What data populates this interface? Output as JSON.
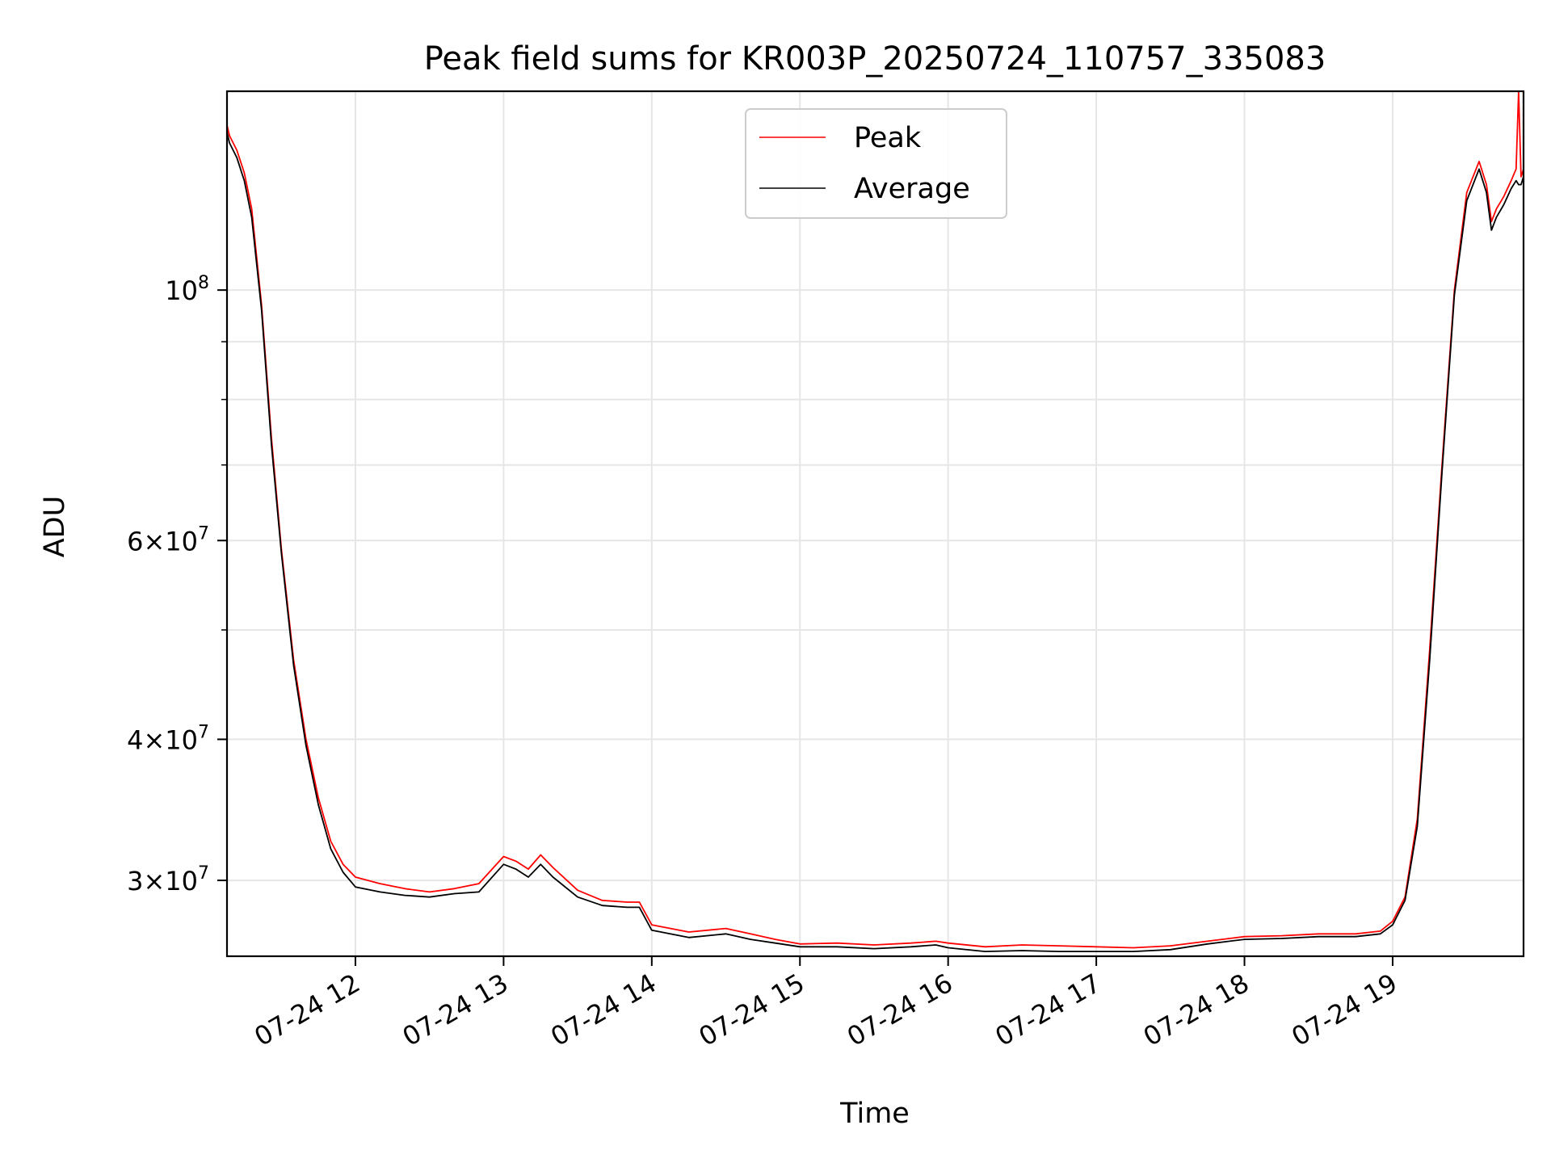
{
  "chart_data": {
    "type": "line",
    "title": "Peak field sums for KR003P_20250724_110757_335083",
    "xlabel": "Time",
    "ylabel": "ADU",
    "yscale": "log",
    "grid": true,
    "legend_position": "top-center",
    "x_tick_labels": [
      "07-24 12",
      "07-24 13",
      "07-24 14",
      "07-24 15",
      "07-24 16",
      "07-24 17",
      "07-24 18",
      "07-24 19"
    ],
    "y_tick_labels": [
      {
        "value": 30000000,
        "base": "3×10",
        "exp": "7"
      },
      {
        "value": 40000000,
        "base": "4×10",
        "exp": "7"
      },
      {
        "value": 60000000,
        "base": "6×10",
        "exp": "7"
      },
      {
        "value": 100000000,
        "base": "10",
        "exp": "8"
      }
    ],
    "xlim": [
      "2025-07-24T11:08",
      "2025-07-24T19:53"
    ],
    "ylim": [
      25700000,
      150000000
    ],
    "series": [
      {
        "name": "Peak",
        "color": "#ff0000",
        "x": [
          "11:08",
          "11:09",
          "11:12",
          "11:15",
          "11:18",
          "11:22",
          "11:26",
          "11:30",
          "11:35",
          "11:40",
          "11:45",
          "11:50",
          "11:55",
          "12:00",
          "12:10",
          "12:20",
          "12:30",
          "12:40",
          "12:50",
          "13:00",
          "13:05",
          "13:10",
          "13:15",
          "13:20",
          "13:30",
          "13:40",
          "13:50",
          "13:55",
          "14:00",
          "14:15",
          "14:30",
          "14:40",
          "14:50",
          "15:00",
          "15:15",
          "15:30",
          "15:45",
          "15:55",
          "16:00",
          "16:15",
          "16:30",
          "16:45",
          "17:00",
          "17:15",
          "17:30",
          "17:45",
          "18:00",
          "18:15",
          "18:30",
          "18:45",
          "18:55",
          "19:00",
          "19:05",
          "19:10",
          "19:15",
          "19:20",
          "19:25",
          "19:30",
          "19:35",
          "19:38",
          "19:40",
          "19:42",
          "19:45",
          "19:48",
          "19:50",
          "19:51",
          "19:52",
          "19:53"
        ],
        "y": [
          140000000,
          137000000,
          133000000,
          127000000,
          118000000,
          97000000,
          74000000,
          59000000,
          47000000,
          40000000,
          35500000,
          32500000,
          31000000,
          30200000,
          29800000,
          29500000,
          29300000,
          29500000,
          29800000,
          31500000,
          31200000,
          30700000,
          31600000,
          30800000,
          29400000,
          28800000,
          28700000,
          28700000,
          27400000,
          27000000,
          27200000,
          26900000,
          26600000,
          26350000,
          26400000,
          26300000,
          26400000,
          26500000,
          26400000,
          26200000,
          26300000,
          26250000,
          26200000,
          26150000,
          26250000,
          26500000,
          26750000,
          26800000,
          26900000,
          26900000,
          27050000,
          27600000,
          29000000,
          34000000,
          48000000,
          70000000,
          100000000,
          122000000,
          130000000,
          124000000,
          115000000,
          118000000,
          121000000,
          125000000,
          128000000,
          150000000,
          126000000,
          128000000
        ]
      },
      {
        "name": "Average",
        "color": "#000000",
        "x": [
          "11:08",
          "11:09",
          "11:12",
          "11:15",
          "11:18",
          "11:22",
          "11:26",
          "11:30",
          "11:35",
          "11:40",
          "11:45",
          "11:50",
          "11:55",
          "12:00",
          "12:10",
          "12:20",
          "12:30",
          "12:40",
          "12:50",
          "13:00",
          "13:05",
          "13:10",
          "13:15",
          "13:20",
          "13:30",
          "13:40",
          "13:50",
          "13:55",
          "14:00",
          "14:15",
          "14:30",
          "14:40",
          "14:50",
          "15:00",
          "15:15",
          "15:30",
          "15:45",
          "15:55",
          "16:00",
          "16:15",
          "16:30",
          "16:45",
          "17:00",
          "17:15",
          "17:30",
          "17:45",
          "18:00",
          "18:15",
          "18:30",
          "18:45",
          "18:55",
          "19:00",
          "19:05",
          "19:10",
          "19:15",
          "19:20",
          "19:25",
          "19:30",
          "19:35",
          "19:38",
          "19:40",
          "19:42",
          "19:45",
          "19:48",
          "19:50",
          "19:51",
          "19:52",
          "19:53"
        ],
        "y": [
          138000000,
          135000000,
          131000000,
          125000000,
          116000000,
          96000000,
          73000000,
          58500000,
          46500000,
          39500000,
          35000000,
          32000000,
          30500000,
          29600000,
          29300000,
          29100000,
          29000000,
          29200000,
          29300000,
          31000000,
          30700000,
          30200000,
          31000000,
          30200000,
          29000000,
          28500000,
          28400000,
          28400000,
          27100000,
          26700000,
          26900000,
          26600000,
          26400000,
          26200000,
          26200000,
          26100000,
          26200000,
          26300000,
          26150000,
          25950000,
          26000000,
          25950000,
          25950000,
          25950000,
          26050000,
          26350000,
          26600000,
          26650000,
          26750000,
          26750000,
          26900000,
          27400000,
          28800000,
          33500000,
          47000000,
          69000000,
          99000000,
          120000000,
          128000000,
          122000000,
          113000000,
          116000000,
          119000000,
          123000000,
          125000000,
          124000000,
          124000000,
          126000000
        ]
      }
    ]
  }
}
